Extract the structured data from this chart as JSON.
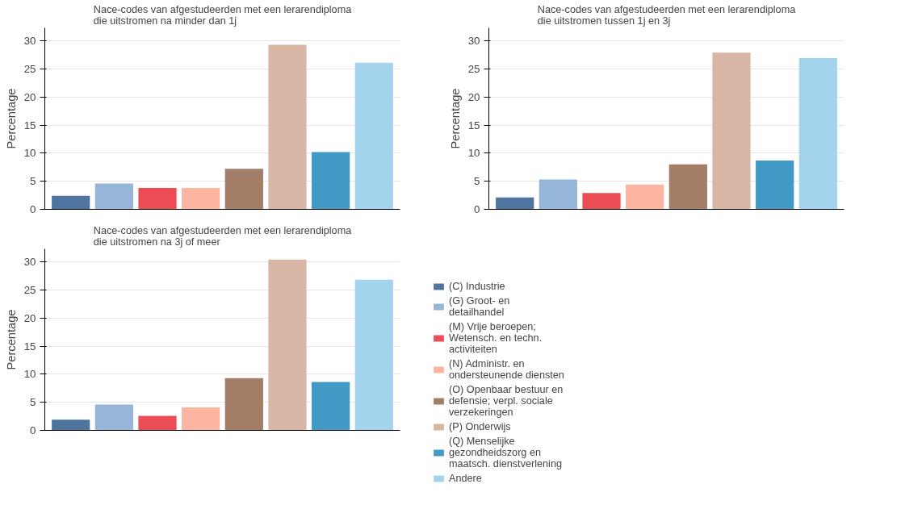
{
  "chart_data": [
    {
      "type": "bar",
      "title": "Nace-codes van afgestudeerden met een lerarendiploma\ndie uitstromen na minder dan 1j",
      "ylabel": "Percentage",
      "categories": [
        null
      ],
      "ylim": [
        0,
        32.3
      ],
      "yticks": [
        0,
        5,
        10,
        15,
        20,
        25,
        30
      ],
      "grid": "y",
      "series": [
        {
          "color": "#4e75a0",
          "values": [
            2.4
          ]
        },
        {
          "color": "#95b6d9",
          "values": [
            4.6
          ]
        },
        {
          "color": "#ec4d55",
          "values": [
            3.8
          ]
        },
        {
          "color": "#fdb5a2",
          "values": [
            3.8
          ]
        },
        {
          "color": "#a27e68",
          "values": [
            7.2
          ]
        },
        {
          "color": "#d8b6a6",
          "values": [
            29.3
          ]
        },
        {
          "color": "#419ac6",
          "values": [
            10.2
          ]
        },
        {
          "color": "#a4d4ed",
          "values": [
            26.1
          ]
        }
      ]
    },
    {
      "type": "bar",
      "title": "Nace-codes van afgestudeerden met een lerarendiploma\ndie uitstromen tussen 1j en 3j",
      "ylabel": "Percentage",
      "categories": [
        null
      ],
      "ylim": [
        0,
        32.3
      ],
      "yticks": [
        0,
        5,
        10,
        15,
        20,
        25,
        30
      ],
      "grid": "y",
      "series": [
        {
          "color": "#4e75a0",
          "values": [
            2.1
          ]
        },
        {
          "color": "#95b6d9",
          "values": [
            5.3
          ]
        },
        {
          "color": "#ec4d55",
          "values": [
            2.9
          ]
        },
        {
          "color": "#fdb5a2",
          "values": [
            4.4
          ]
        },
        {
          "color": "#a27e68",
          "values": [
            8.0
          ]
        },
        {
          "color": "#d8b6a6",
          "values": [
            27.9
          ]
        },
        {
          "color": "#419ac6",
          "values": [
            8.7
          ]
        },
        {
          "color": "#a4d4ed",
          "values": [
            26.9
          ]
        }
      ]
    },
    {
      "type": "bar",
      "title": "Nace-codes van afgestudeerden met een lerarendiploma\ndie uitstromen na 3j of meer",
      "ylabel": "Percentage",
      "categories": [
        null
      ],
      "ylim": [
        0,
        32.3
      ],
      "yticks": [
        0,
        5,
        10,
        15,
        20,
        25,
        30
      ],
      "grid": "y",
      "legend": "right",
      "series": [
        {
          "name": "(C) Industrie",
          "color": "#4e75a0",
          "values": [
            1.9
          ]
        },
        {
          "name": "(G) Groot- en detailhandel",
          "color": "#95b6d9",
          "values": [
            4.6
          ]
        },
        {
          "name": "(M) Vrije beroepen; Wetensch. en techn. activiteiten",
          "color": "#ec4d55",
          "values": [
            2.6
          ]
        },
        {
          "name": "(N) Administr. en ondersteunende diensten",
          "color": "#fdb5a2",
          "values": [
            4.1
          ]
        },
        {
          "name": "(O) Openbaar bestuur en defensie; verpl. sociale verzekeringen",
          "color": "#a27e68",
          "values": [
            9.3
          ]
        },
        {
          "name": "(P) Onderwijs",
          "color": "#d8b6a6",
          "values": [
            30.4
          ]
        },
        {
          "name": "(Q) Menselijke gezondheidszorg en maatsch. dienstverlening",
          "color": "#419ac6",
          "values": [
            8.6
          ]
        },
        {
          "name": "Andere",
          "color": "#a4d4ed",
          "values": [
            26.8
          ]
        }
      ]
    }
  ]
}
